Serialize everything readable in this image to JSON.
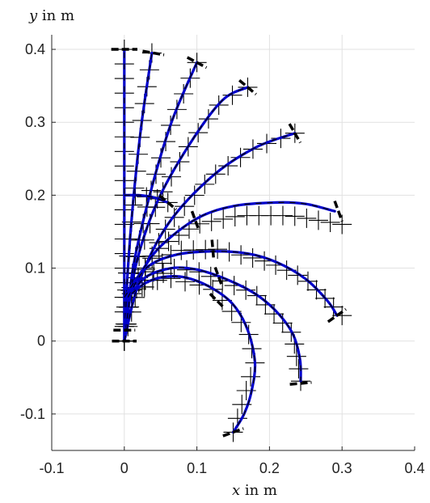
{
  "chart_data": {
    "type": "line",
    "title": "",
    "xlabel": {
      "var": "x",
      "rest": " in m"
    },
    "ylabel": {
      "var": "y",
      "rest": " in m"
    },
    "xlim": [
      -0.1,
      0.4
    ],
    "ylim": [
      -0.15,
      0.42
    ],
    "xticks": [
      -0.1,
      0,
      0.1,
      0.2,
      0.3,
      0.4
    ],
    "yticks": [
      -0.1,
      0,
      0.1,
      0.2,
      0.3,
      0.4
    ],
    "xtick_labels": [
      "-0.1",
      "0",
      "0.1",
      "0.2",
      "0.3",
      "0.4"
    ],
    "ytick_labels": [
      "-0.1",
      "0",
      "0.1",
      "0.2",
      "0.3",
      "0.4"
    ],
    "grid": true,
    "colors": {
      "curve": "#0000cc",
      "marker": "#000000",
      "grid": "#e1e1e1",
      "axis": "#262626"
    },
    "series": [
      {
        "values": [
          [
            0,
            0
          ],
          [
            0,
            0.1
          ],
          [
            0,
            0.2
          ],
          [
            0,
            0.3
          ],
          [
            0,
            0.4
          ]
        ]
      },
      {
        "values": [
          [
            0,
            0
          ],
          [
            0.005,
            0.1
          ],
          [
            0.013,
            0.2
          ],
          [
            0.024,
            0.3
          ],
          [
            0.038,
            0.395
          ]
        ]
      },
      {
        "values": [
          [
            0,
            0
          ],
          [
            0.012,
            0.1
          ],
          [
            0.035,
            0.2
          ],
          [
            0.065,
            0.3
          ],
          [
            0.1,
            0.382
          ]
        ]
      },
      {
        "values": [
          [
            0,
            0
          ],
          [
            0.015,
            0.1
          ],
          [
            0.045,
            0.19
          ],
          [
            0.09,
            0.27
          ],
          [
            0.135,
            0.33
          ],
          [
            0.17,
            0.348
          ]
        ]
      },
      {
        "values": [
          [
            0,
            0
          ],
          [
            0.02,
            0.08
          ],
          [
            0.06,
            0.16
          ],
          [
            0.12,
            0.225
          ],
          [
            0.18,
            0.265
          ],
          [
            0.235,
            0.285
          ]
        ]
      },
      {
        "values": [
          [
            0,
            0.2
          ],
          [
            0.02,
            0.2
          ],
          [
            0.04,
            0.197
          ],
          [
            0.06,
            0.19
          ]
        ]
      },
      {
        "values": [
          [
            0,
            0.06
          ],
          [
            0.02,
            0.09
          ],
          [
            0.05,
            0.13
          ],
          [
            0.1,
            0.168
          ],
          [
            0.15,
            0.185
          ],
          [
            0.21,
            0.19
          ],
          [
            0.25,
            0.188
          ],
          [
            0.29,
            0.178
          ]
        ]
      },
      {
        "values": [
          [
            0.005,
            0.06
          ],
          [
            0.03,
            0.1
          ],
          [
            0.07,
            0.118
          ],
          [
            0.12,
            0.123
          ],
          [
            0.17,
            0.12
          ],
          [
            0.21,
            0.108
          ],
          [
            0.25,
            0.085
          ],
          [
            0.28,
            0.055
          ],
          [
            0.293,
            0.035
          ]
        ]
      },
      {
        "values": [
          [
            0.01,
            0.065
          ],
          [
            0.03,
            0.088
          ],
          [
            0.065,
            0.1
          ],
          [
            0.1,
            0.098
          ],
          [
            0.14,
            0.085
          ],
          [
            0.18,
            0.065
          ],
          [
            0.21,
            0.04
          ],
          [
            0.232,
            0.01
          ],
          [
            0.242,
            -0.025
          ],
          [
            0.243,
            -0.055
          ]
        ]
      },
      {
        "values": [
          [
            0.01,
            0.065
          ],
          [
            0.03,
            0.08
          ],
          [
            0.055,
            0.088
          ],
          [
            0.085,
            0.087
          ],
          [
            0.12,
            0.073
          ],
          [
            0.15,
            0.05
          ],
          [
            0.17,
            0.015
          ],
          [
            0.18,
            -0.03
          ],
          [
            0.175,
            -0.07
          ],
          [
            0.165,
            -0.1
          ],
          [
            0.15,
            -0.125
          ]
        ]
      }
    ],
    "marker_tracks": [
      {
        "values": [
          [
            0,
            0
          ],
          [
            0,
            0.4
          ]
        ],
        "count": 21
      },
      {
        "values": [
          [
            0,
            0
          ],
          [
            0.005,
            0.1
          ],
          [
            0.013,
            0.2
          ],
          [
            0.024,
            0.3
          ],
          [
            0.038,
            0.395
          ]
        ],
        "count": 18
      },
      {
        "values": [
          [
            0,
            0
          ],
          [
            0.012,
            0.1
          ],
          [
            0.035,
            0.2
          ],
          [
            0.065,
            0.3
          ],
          [
            0.1,
            0.382
          ]
        ],
        "count": 18
      },
      {
        "values": [
          [
            0,
            0
          ],
          [
            0.015,
            0.1
          ],
          [
            0.045,
            0.19
          ],
          [
            0.09,
            0.27
          ],
          [
            0.135,
            0.33
          ],
          [
            0.17,
            0.348
          ]
        ],
        "count": 18
      },
      {
        "values": [
          [
            0,
            0
          ],
          [
            0.02,
            0.08
          ],
          [
            0.06,
            0.16
          ],
          [
            0.12,
            0.225
          ],
          [
            0.18,
            0.265
          ],
          [
            0.235,
            0.285
          ]
        ],
        "count": 20
      },
      {
        "values": [
          [
            0,
            0.2
          ],
          [
            0.04,
            0.197
          ],
          [
            0.06,
            0.19
          ]
        ],
        "count": 5
      },
      {
        "values": [
          [
            0,
            0.06
          ],
          [
            0.05,
            0.13
          ],
          [
            0.1,
            0.16
          ],
          [
            0.16,
            0.172
          ],
          [
            0.23,
            0.172
          ],
          [
            0.3,
            0.16
          ]
        ],
        "count": 22
      },
      {
        "values": [
          [
            0.005,
            0.06
          ],
          [
            0.07,
            0.124
          ],
          [
            0.13,
            0.126
          ],
          [
            0.2,
            0.108
          ],
          [
            0.25,
            0.085
          ],
          [
            0.28,
            0.055
          ],
          [
            0.3,
            0.035
          ]
        ],
        "count": 22
      },
      {
        "values": [
          [
            0.01,
            0.065
          ],
          [
            0.065,
            0.1
          ],
          [
            0.1,
            0.096
          ],
          [
            0.18,
            0.065
          ],
          [
            0.232,
            0.01
          ],
          [
            0.243,
            -0.055
          ]
        ],
        "count": 20
      },
      {
        "values": [
          [
            0.01,
            0.065
          ],
          [
            0.055,
            0.088
          ],
          [
            0.12,
            0.073
          ],
          [
            0.17,
            0.015
          ],
          [
            0.18,
            -0.03
          ],
          [
            0.15,
            -0.125
          ]
        ],
        "count": 18
      }
    ],
    "end_caps": [
      {
        "at": [
          0,
          0.4
        ],
        "angle": 0,
        "len": 0.036
      },
      {
        "at": [
          0.04,
          0.395
        ],
        "angle": -10,
        "len": 0.03
      },
      {
        "at": [
          0.1,
          0.382
        ],
        "angle": -28,
        "len": 0.03
      },
      {
        "at": [
          0.17,
          0.348
        ],
        "angle": -40,
        "len": 0.03
      },
      {
        "at": [
          0.235,
          0.285
        ],
        "angle": -60,
        "len": 0.03
      },
      {
        "at": [
          0.06,
          0.19
        ],
        "angle": -40,
        "len": 0.03
      },
      {
        "at": [
          0.295,
          0.178
        ],
        "angle": -70,
        "len": 0.03
      },
      {
        "at": [
          0.293,
          0.035
        ],
        "angle": 35,
        "len": 0.03
      },
      {
        "at": [
          0.243,
          -0.058
        ],
        "angle": 5,
        "len": 0.03
      },
      {
        "at": [
          0.15,
          -0.125
        ],
        "angle": 20,
        "len": 0.03
      },
      {
        "at": [
          0,
          0
        ],
        "angle": 0,
        "len": 0.034
      },
      {
        "at": [
          0,
          0.015
        ],
        "angle": 0,
        "len": 0.03
      },
      {
        "at": [
          0.098,
          0.165
        ],
        "angle": -70,
        "len": 0.028
      },
      {
        "at": [
          0.122,
          0.125
        ],
        "angle": -85,
        "len": 0.028
      },
      {
        "at": [
          0.13,
          0.088
        ],
        "angle": -70,
        "len": 0.028
      },
      {
        "at": [
          0.128,
          0.055
        ],
        "angle": -45,
        "len": 0.028
      }
    ]
  }
}
